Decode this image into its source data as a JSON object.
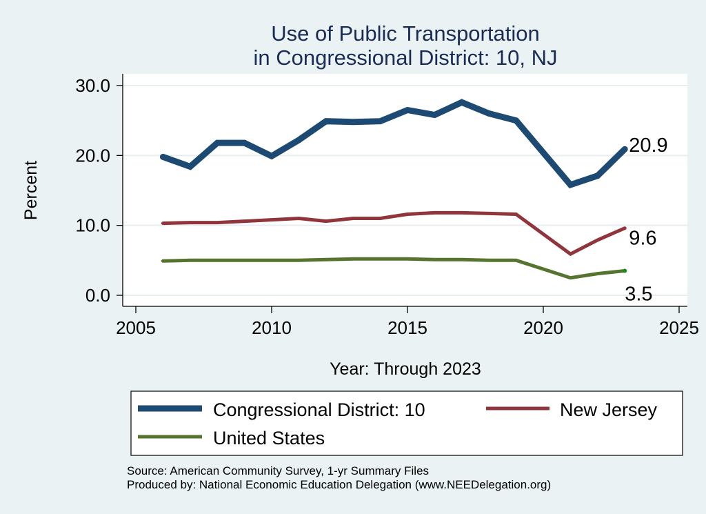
{
  "chart_data": {
    "type": "line",
    "title": [
      "Use of Public Transportation",
      "in Congressional District: 10, NJ"
    ],
    "xlabel": "Year: Through 2023",
    "ylabel": "Percent",
    "xlim": [
      2005,
      2025
    ],
    "ylim": [
      0,
      30
    ],
    "xticks": [
      2005,
      2010,
      2015,
      2020,
      2025
    ],
    "xtick_labels": [
      "2005",
      "2010",
      "2015",
      "2020",
      "2025"
    ],
    "yticks": [
      0,
      10,
      20,
      30
    ],
    "ytick_labels": [
      "0.0",
      "10.0",
      "20.0",
      "30.0"
    ],
    "grid": true,
    "legend_position": "bottom",
    "series": [
      {
        "name": "Congressional District: 10",
        "color": "#1c4a72",
        "x": [
          2006,
          2007,
          2008,
          2009,
          2010,
          2011,
          2012,
          2013,
          2014,
          2015,
          2016,
          2017,
          2018,
          2019,
          2021,
          2022,
          2023
        ],
        "values": [
          19.8,
          18.4,
          21.8,
          21.8,
          19.9,
          22.2,
          24.9,
          24.8,
          24.9,
          26.5,
          25.8,
          27.6,
          26.0,
          25.0,
          15.8,
          17.1,
          20.9
        ],
        "end_label": "20.9"
      },
      {
        "name": "New Jersey",
        "color": "#90353b",
        "x": [
          2006,
          2007,
          2008,
          2009,
          2010,
          2011,
          2012,
          2013,
          2014,
          2015,
          2016,
          2017,
          2018,
          2019,
          2021,
          2022,
          2023
        ],
        "values": [
          10.3,
          10.4,
          10.4,
          10.6,
          10.8,
          11.0,
          10.6,
          11.0,
          11.0,
          11.6,
          11.8,
          11.8,
          11.7,
          11.6,
          5.9,
          7.9,
          9.6
        ],
        "end_label": "9.6"
      },
      {
        "name": "United States",
        "color": "#55752f",
        "x": [
          2006,
          2007,
          2008,
          2009,
          2010,
          2011,
          2012,
          2013,
          2014,
          2015,
          2016,
          2017,
          2018,
          2019,
          2021,
          2022,
          2023
        ],
        "values": [
          4.9,
          5.0,
          5.0,
          5.0,
          5.0,
          5.0,
          5.1,
          5.2,
          5.2,
          5.2,
          5.1,
          5.1,
          5.0,
          5.0,
          2.5,
          3.1,
          3.5
        ],
        "end_label": "3.5"
      }
    ],
    "notes": [
      "Source: American Community Survey, 1-yr Summary Files",
      "Produced by: National Economic Education Delegation (www.NEEDelegation.org)"
    ]
  }
}
